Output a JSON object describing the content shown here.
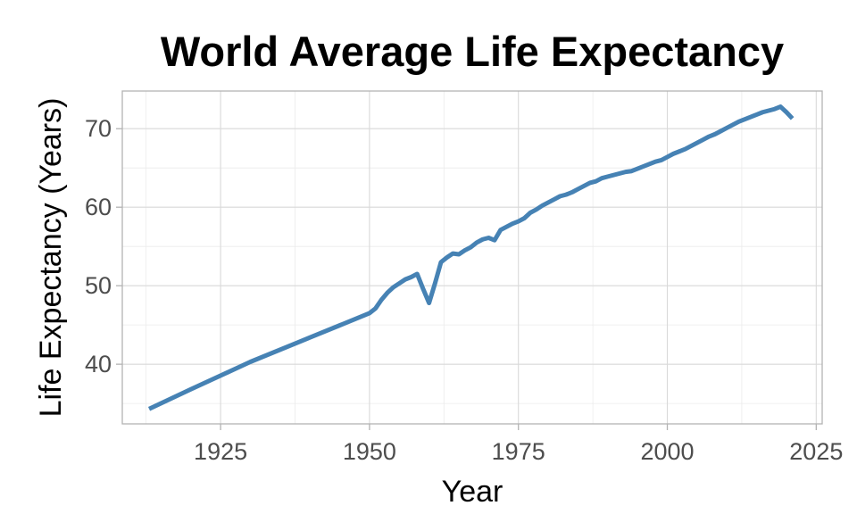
{
  "chart_data": {
    "type": "line",
    "title": "World Average Life Expectancy",
    "xlabel": "Year",
    "ylabel": "Life Expectancy (Years)",
    "xlim": [
      1908.5,
      2026
    ],
    "ylim": [
      32.4,
      74.8
    ],
    "x_ticks": [
      1925,
      1950,
      1975,
      2000,
      2025
    ],
    "y_ticks": [
      40,
      50,
      60,
      70
    ],
    "grid": true,
    "legend": "none",
    "line_color": "#4682b4",
    "series": [
      {
        "x": [
          1913,
          1920,
          1930,
          1940,
          1950,
          1951,
          1952,
          1953,
          1954,
          1955,
          1956,
          1957,
          1958,
          1959,
          1960,
          1961,
          1962,
          1963,
          1964,
          1965,
          1966,
          1967,
          1968,
          1969,
          1970,
          1971,
          1972,
          1973,
          1974,
          1975,
          1976,
          1977,
          1978,
          1979,
          1980,
          1981,
          1982,
          1983,
          1984,
          1985,
          1986,
          1987,
          1988,
          1989,
          1990,
          1991,
          1992,
          1993,
          1994,
          1995,
          1996,
          1997,
          1998,
          1999,
          2000,
          2001,
          2002,
          2003,
          2004,
          2005,
          2006,
          2007,
          2008,
          2009,
          2010,
          2011,
          2012,
          2013,
          2014,
          2015,
          2016,
          2017,
          2018,
          2019,
          2020,
          2021
        ],
        "y": [
          34.3,
          36.8,
          40.3,
          43.4,
          46.5,
          47.1,
          48.2,
          49.1,
          49.8,
          50.3,
          50.8,
          51.1,
          51.5,
          49.6,
          47.8,
          50.3,
          53.0,
          53.6,
          54.1,
          54.0,
          54.5,
          54.9,
          55.5,
          55.9,
          56.1,
          55.8,
          57.1,
          57.5,
          57.9,
          58.2,
          58.6,
          59.3,
          59.7,
          60.2,
          60.6,
          61.0,
          61.4,
          61.6,
          61.9,
          62.3,
          62.7,
          63.1,
          63.3,
          63.7,
          63.9,
          64.1,
          64.3,
          64.5,
          64.6,
          64.9,
          65.2,
          65.5,
          65.8,
          66.0,
          66.4,
          66.8,
          67.1,
          67.4,
          67.8,
          68.2,
          68.6,
          69.0,
          69.3,
          69.7,
          70.1,
          70.5,
          70.9,
          71.2,
          71.5,
          71.8,
          72.1,
          72.3,
          72.5,
          72.8,
          72.1,
          71.3
        ]
      }
    ]
  }
}
